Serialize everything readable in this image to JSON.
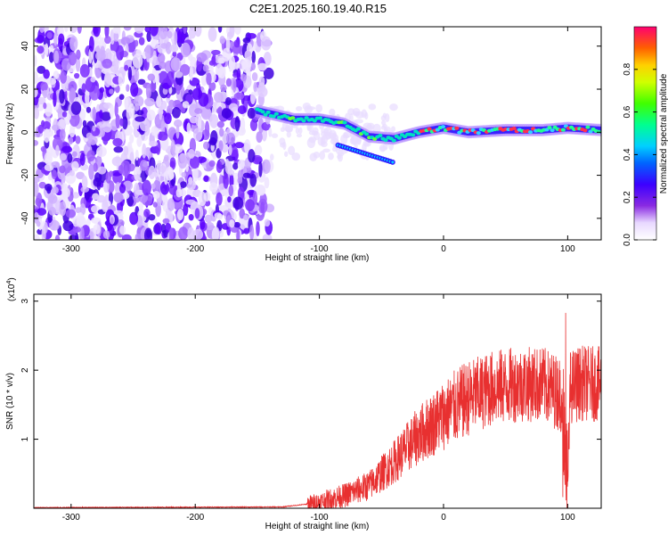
{
  "figure_title": "C2E1.2025.160.19.40.R15",
  "chart_data": [
    {
      "type": "heatmap",
      "xlabel": "Height of straight line (km)",
      "ylabel": "Frequency (Hz)",
      "xlim": [
        -330,
        127
      ],
      "ylim": [
        -50,
        49
      ],
      "x_ticks": [
        -300,
        -200,
        -100,
        0,
        100
      ],
      "y_ticks": [
        -40,
        -20,
        0,
        20,
        40
      ],
      "colorbar": {
        "label": "Normalized spectral amplitude",
        "range": [
          0,
          1
        ],
        "ticks": [
          "0.0",
          "0.2",
          "0.4",
          "0.6",
          "0.8"
        ]
      },
      "ridge": {
        "description_points_x": [
          -150,
          -120,
          -100,
          -80,
          -60,
          -40,
          -20,
          0,
          20,
          50,
          80,
          100,
          127
        ],
        "description_points_y": [
          10,
          6,
          6,
          4,
          -2,
          -3,
          0,
          2,
          0,
          1,
          1,
          2,
          1
        ]
      }
    },
    {
      "type": "line",
      "xlabel": "Height of straight line (km)",
      "ylabel": "SNR (10 * v/v)",
      "scale_note": "(x10",
      "scale_exp": "4",
      "xlim": [
        -330,
        127
      ],
      "ylim": [
        0,
        3.1
      ],
      "x_ticks": [
        -300,
        -200,
        -100,
        0,
        100
      ],
      "y_ticks": [
        1,
        2,
        3
      ],
      "series_color": "#e83030",
      "envelope": {
        "x": [
          -330,
          -130,
          -110,
          -100,
          -80,
          -60,
          -40,
          -20,
          0,
          20,
          40,
          60,
          80,
          95,
          98,
          100,
          102,
          110,
          127
        ],
        "y": [
          0.01,
          0.02,
          0.06,
          0.1,
          0.2,
          0.35,
          0.7,
          1.1,
          1.4,
          1.65,
          1.8,
          1.85,
          1.85,
          1.7,
          2.5,
          0.05,
          1.8,
          1.87,
          1.85
        ]
      }
    }
  ]
}
